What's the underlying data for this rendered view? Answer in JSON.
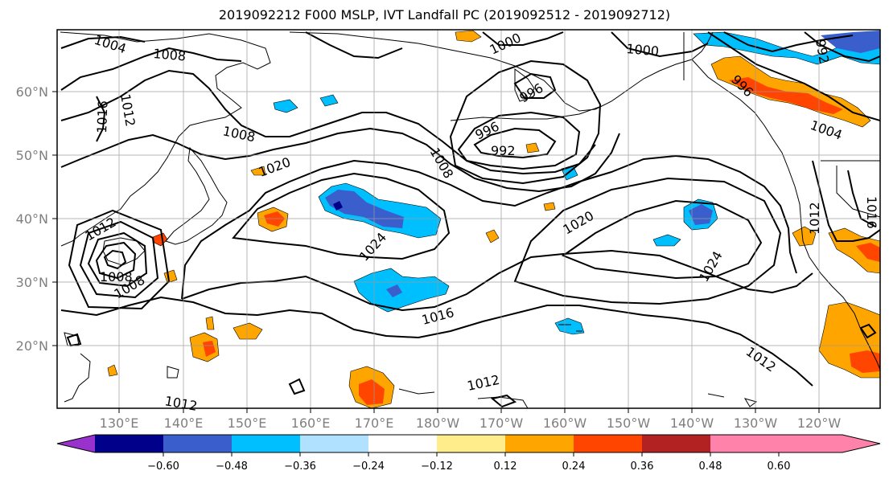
{
  "title": "2019092212 F000 MSLP, IVT Landfall PC (2019092512 - 2019092712)",
  "map": {
    "lat_labels": [
      "60°N",
      "50°N",
      "40°N",
      "30°N",
      "20°N"
    ],
    "lon_labels": [
      "130°E",
      "140°E",
      "150°E",
      "160°E",
      "170°E",
      "180°W",
      "170°W",
      "160°W",
      "150°W",
      "140°W",
      "130°W",
      "120°W"
    ],
    "isobar_labels": [
      "1004",
      "1008",
      "1016",
      "1012",
      "1008",
      "1020",
      "1024",
      "1012",
      "1008",
      "1008",
      "1000",
      "996",
      "996",
      "992",
      "1008",
      "1020",
      "1024",
      "1000",
      "996",
      "992",
      "1004",
      "1016",
      "1012",
      "1016",
      "1012",
      "1012",
      "1012"
    ],
    "grid": true
  },
  "colorbar": {
    "colors": [
      "#9932cc",
      "#00008b",
      "#3a5fcd",
      "#00bfff",
      "#b0e2ff",
      "#ffffff",
      "#ffec8b",
      "#ffa500",
      "#ff4500",
      "#b22222",
      "#ff82ab"
    ],
    "tick_labels": [
      "−0.60",
      "−0.48",
      "−0.36",
      "−0.24",
      "−0.12",
      "0.12",
      "0.24",
      "0.36",
      "0.48",
      "0.60"
    ]
  }
}
